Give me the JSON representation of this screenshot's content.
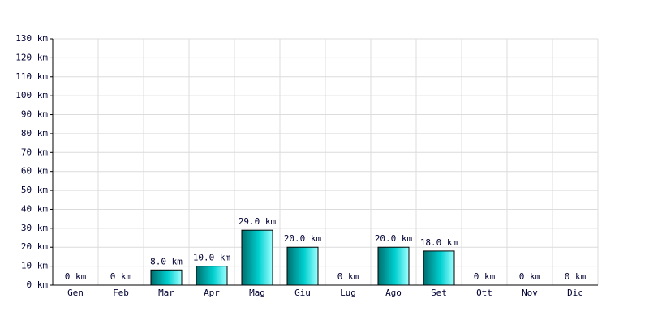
{
  "chart_data": {
    "type": "bar",
    "categories": [
      "Gen",
      "Feb",
      "Mar",
      "Apr",
      "Mag",
      "Giu",
      "Lug",
      "Ago",
      "Set",
      "Ott",
      "Nov",
      "Dic"
    ],
    "values": [
      0,
      0,
      8,
      10,
      29,
      20,
      0,
      20,
      18,
      0,
      0,
      0
    ],
    "value_labels": [
      "0 km",
      "0 km",
      "8.0 km",
      "10.0 km",
      "29.0 km",
      "20.0 km",
      "0 km",
      "20.0 km",
      "18.0 km",
      "0 km",
      "0 km",
      "0 km"
    ],
    "color": "#00d0d0",
    "ylim": [
      0,
      130
    ],
    "yticks": [
      {
        "value": 0,
        "label": "0 km"
      },
      {
        "value": 10,
        "label": "10 km"
      },
      {
        "value": 20,
        "label": "20 km"
      },
      {
        "value": 30,
        "label": "30 km"
      },
      {
        "value": 40,
        "label": "40 km"
      },
      {
        "value": 50,
        "label": "50 km"
      },
      {
        "value": 60,
        "label": "60 km"
      },
      {
        "value": 70,
        "label": "70 km"
      },
      {
        "value": 80,
        "label": "80 km"
      },
      {
        "value": 90,
        "label": "90 km"
      },
      {
        "value": 100,
        "label": "100 km"
      },
      {
        "value": 110,
        "label": "110 km"
      },
      {
        "value": 120,
        "label": "120 km"
      },
      {
        "value": 130,
        "label": "130 km"
      }
    ],
    "grid": true
  }
}
